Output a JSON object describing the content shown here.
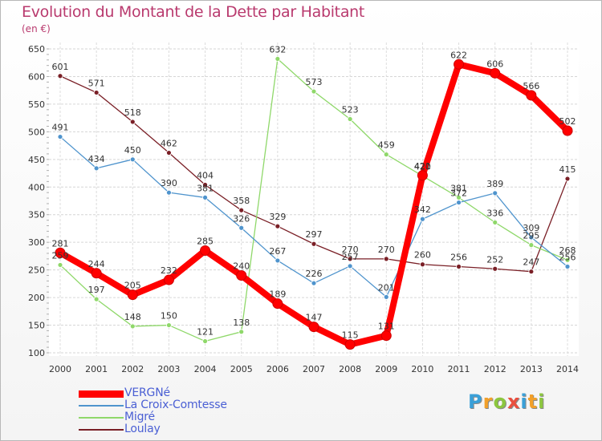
{
  "title": "Evolution du Montant de la Dette par Habitant",
  "unit": "(en €)",
  "logo": {
    "text": "Proxiti",
    "colors": [
      "#3aa0d8",
      "#f2a02a",
      "#8cc63f",
      "#e94f3f",
      "#3aa0d8",
      "#f2a02a",
      "#8cc63f"
    ]
  },
  "chart_data": {
    "type": "line",
    "x": [
      "2000",
      "2001",
      "2002",
      "2003",
      "2004",
      "2005",
      "2006",
      "2007",
      "2008",
      "2009",
      "2010",
      "2011",
      "2012",
      "2013",
      "2014"
    ],
    "ylim": [
      100,
      650
    ],
    "yticks": [
      "100",
      "150",
      "200",
      "250",
      "300",
      "350",
      "400",
      "450",
      "500",
      "550",
      "600",
      "650"
    ],
    "grid": true,
    "legend_position": "bottom-left",
    "series": [
      {
        "name": "Loulay",
        "color": "#7a1f26",
        "values": [
          601,
          571,
          518,
          462,
          404,
          358,
          329,
          297,
          270,
          270,
          260,
          256,
          252,
          247,
          415
        ],
        "labels": [
          "601",
          "571",
          "518",
          "462",
          "404",
          "358",
          "329",
          "297",
          "270",
          "270",
          "260",
          "256",
          "252",
          "247",
          "415"
        ]
      },
      {
        "name": "Migré",
        "color": "#8fd86a",
        "values": [
          259,
          197,
          148,
          150,
          121,
          138,
          632,
          573,
          523,
          459,
          420,
          381,
          336,
          295,
          268
        ],
        "labels": [
          "259",
          "197",
          "148",
          "150",
          "121",
          "138",
          "632",
          "573",
          "523",
          "459",
          "420",
          "381",
          "336",
          "295",
          "268"
        ]
      },
      {
        "name": "La Croix-Comtesse",
        "color": "#4f94cd",
        "values": [
          491,
          434,
          450,
          390,
          381,
          326,
          267,
          226,
          257,
          201,
          342,
          372,
          389,
          309,
          256
        ],
        "labels": [
          "491",
          "434",
          "450",
          "390",
          "381",
          "326",
          "267",
          "226",
          "257",
          "201",
          "342",
          "372",
          "389",
          "309",
          "256"
        ]
      },
      {
        "name": "VERGNé",
        "color": "#ff0000",
        "values": [
          281,
          244,
          205,
          232,
          285,
          240,
          189,
          147,
          115,
          131,
          421,
          622,
          606,
          566,
          502
        ],
        "labels": [
          "281",
          "244",
          "205",
          "232",
          "285",
          "240",
          "189",
          "147",
          "115",
          "131",
          "421",
          "622",
          "606",
          "566",
          "502"
        ]
      }
    ],
    "legend": [
      "VERGNé",
      "La Croix-Comtesse",
      "Migré",
      "Loulay"
    ]
  }
}
